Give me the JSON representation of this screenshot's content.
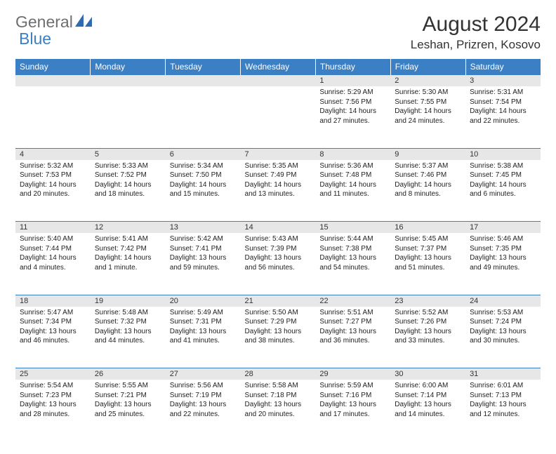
{
  "logo": {
    "text_gray": "General",
    "text_blue": "Blue"
  },
  "title": "August 2024",
  "location": "Leshan, Prizren, Kosovo",
  "colors": {
    "header_bg": "#3b7fc4",
    "header_text": "#ffffff",
    "daynum_bg": "#e7e7e7",
    "week_border": "#3b7fc4",
    "text": "#222222",
    "logo_gray": "#6f6f6f",
    "logo_blue": "#3b7fc4"
  },
  "fonts": {
    "title_size_pt": 22,
    "location_size_pt": 13,
    "weekday_size_pt": 9,
    "daynum_size_pt": 8,
    "body_size_pt": 7.5
  },
  "weekdays": [
    "Sunday",
    "Monday",
    "Tuesday",
    "Wednesday",
    "Thursday",
    "Friday",
    "Saturday"
  ],
  "weeks": [
    [
      null,
      null,
      null,
      null,
      {
        "n": "1",
        "sunrise": "5:29 AM",
        "sunset": "7:56 PM",
        "daylight": "14 hours and 27 minutes."
      },
      {
        "n": "2",
        "sunrise": "5:30 AM",
        "sunset": "7:55 PM",
        "daylight": "14 hours and 24 minutes."
      },
      {
        "n": "3",
        "sunrise": "5:31 AM",
        "sunset": "7:54 PM",
        "daylight": "14 hours and 22 minutes."
      }
    ],
    [
      {
        "n": "4",
        "sunrise": "5:32 AM",
        "sunset": "7:53 PM",
        "daylight": "14 hours and 20 minutes."
      },
      {
        "n": "5",
        "sunrise": "5:33 AM",
        "sunset": "7:52 PM",
        "daylight": "14 hours and 18 minutes."
      },
      {
        "n": "6",
        "sunrise": "5:34 AM",
        "sunset": "7:50 PM",
        "daylight": "14 hours and 15 minutes."
      },
      {
        "n": "7",
        "sunrise": "5:35 AM",
        "sunset": "7:49 PM",
        "daylight": "14 hours and 13 minutes."
      },
      {
        "n": "8",
        "sunrise": "5:36 AM",
        "sunset": "7:48 PM",
        "daylight": "14 hours and 11 minutes."
      },
      {
        "n": "9",
        "sunrise": "5:37 AM",
        "sunset": "7:46 PM",
        "daylight": "14 hours and 8 minutes."
      },
      {
        "n": "10",
        "sunrise": "5:38 AM",
        "sunset": "7:45 PM",
        "daylight": "14 hours and 6 minutes."
      }
    ],
    [
      {
        "n": "11",
        "sunrise": "5:40 AM",
        "sunset": "7:44 PM",
        "daylight": "14 hours and 4 minutes."
      },
      {
        "n": "12",
        "sunrise": "5:41 AM",
        "sunset": "7:42 PM",
        "daylight": "14 hours and 1 minute."
      },
      {
        "n": "13",
        "sunrise": "5:42 AM",
        "sunset": "7:41 PM",
        "daylight": "13 hours and 59 minutes."
      },
      {
        "n": "14",
        "sunrise": "5:43 AM",
        "sunset": "7:39 PM",
        "daylight": "13 hours and 56 minutes."
      },
      {
        "n": "15",
        "sunrise": "5:44 AM",
        "sunset": "7:38 PM",
        "daylight": "13 hours and 54 minutes."
      },
      {
        "n": "16",
        "sunrise": "5:45 AM",
        "sunset": "7:37 PM",
        "daylight": "13 hours and 51 minutes."
      },
      {
        "n": "17",
        "sunrise": "5:46 AM",
        "sunset": "7:35 PM",
        "daylight": "13 hours and 49 minutes."
      }
    ],
    [
      {
        "n": "18",
        "sunrise": "5:47 AM",
        "sunset": "7:34 PM",
        "daylight": "13 hours and 46 minutes."
      },
      {
        "n": "19",
        "sunrise": "5:48 AM",
        "sunset": "7:32 PM",
        "daylight": "13 hours and 44 minutes."
      },
      {
        "n": "20",
        "sunrise": "5:49 AM",
        "sunset": "7:31 PM",
        "daylight": "13 hours and 41 minutes."
      },
      {
        "n": "21",
        "sunrise": "5:50 AM",
        "sunset": "7:29 PM",
        "daylight": "13 hours and 38 minutes."
      },
      {
        "n": "22",
        "sunrise": "5:51 AM",
        "sunset": "7:27 PM",
        "daylight": "13 hours and 36 minutes."
      },
      {
        "n": "23",
        "sunrise": "5:52 AM",
        "sunset": "7:26 PM",
        "daylight": "13 hours and 33 minutes."
      },
      {
        "n": "24",
        "sunrise": "5:53 AM",
        "sunset": "7:24 PM",
        "daylight": "13 hours and 30 minutes."
      }
    ],
    [
      {
        "n": "25",
        "sunrise": "5:54 AM",
        "sunset": "7:23 PM",
        "daylight": "13 hours and 28 minutes."
      },
      {
        "n": "26",
        "sunrise": "5:55 AM",
        "sunset": "7:21 PM",
        "daylight": "13 hours and 25 minutes."
      },
      {
        "n": "27",
        "sunrise": "5:56 AM",
        "sunset": "7:19 PM",
        "daylight": "13 hours and 22 minutes."
      },
      {
        "n": "28",
        "sunrise": "5:58 AM",
        "sunset": "7:18 PM",
        "daylight": "13 hours and 20 minutes."
      },
      {
        "n": "29",
        "sunrise": "5:59 AM",
        "sunset": "7:16 PM",
        "daylight": "13 hours and 17 minutes."
      },
      {
        "n": "30",
        "sunrise": "6:00 AM",
        "sunset": "7:14 PM",
        "daylight": "13 hours and 14 minutes."
      },
      {
        "n": "31",
        "sunrise": "6:01 AM",
        "sunset": "7:13 PM",
        "daylight": "13 hours and 12 minutes."
      }
    ]
  ],
  "labels": {
    "sunrise": "Sunrise: ",
    "sunset": "Sunset: ",
    "daylight": "Daylight: "
  }
}
